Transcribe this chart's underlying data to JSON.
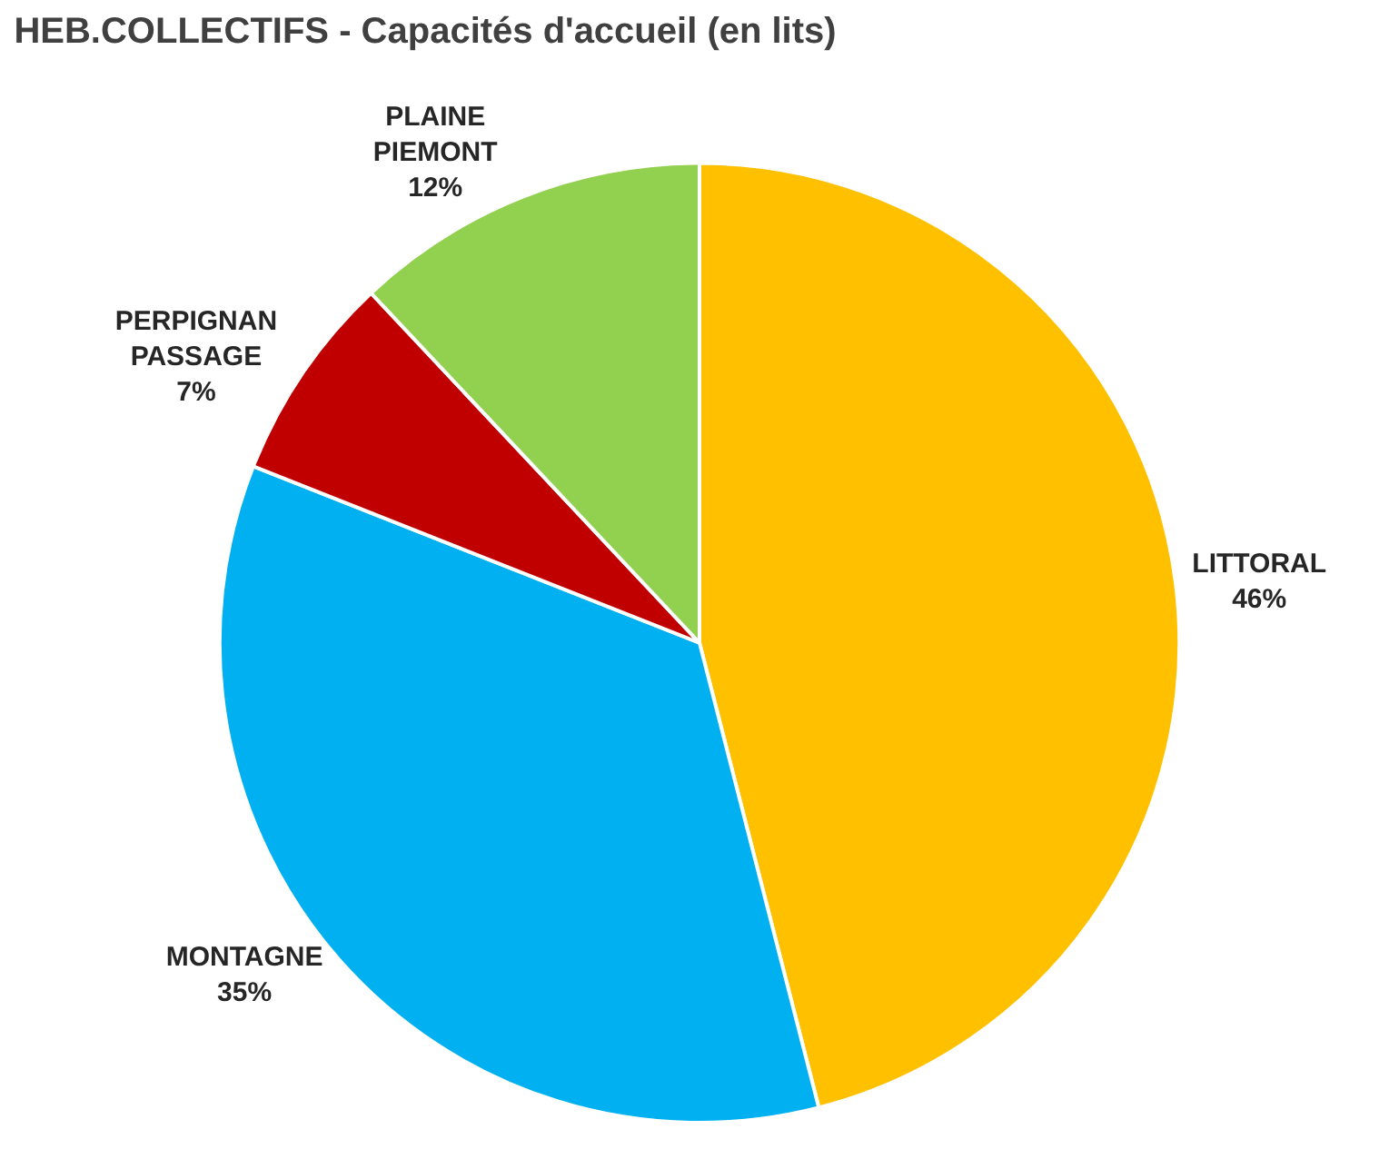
{
  "chart_data": {
    "type": "pie",
    "title": "HEB.COLLECTIFS - Capacités d'accueil (en lits)",
    "categories": [
      "LITTORAL",
      "MONTAGNE",
      "PERPIGNAN PASSAGE",
      "PLAINE PIEMONT"
    ],
    "values": [
      46,
      35,
      7,
      12
    ],
    "colors": [
      "#ffc000",
      "#00b0f0",
      "#c00000",
      "#92d050"
    ],
    "value_labels": [
      "46%",
      "35%",
      "7%",
      "12%"
    ],
    "legend": false
  }
}
